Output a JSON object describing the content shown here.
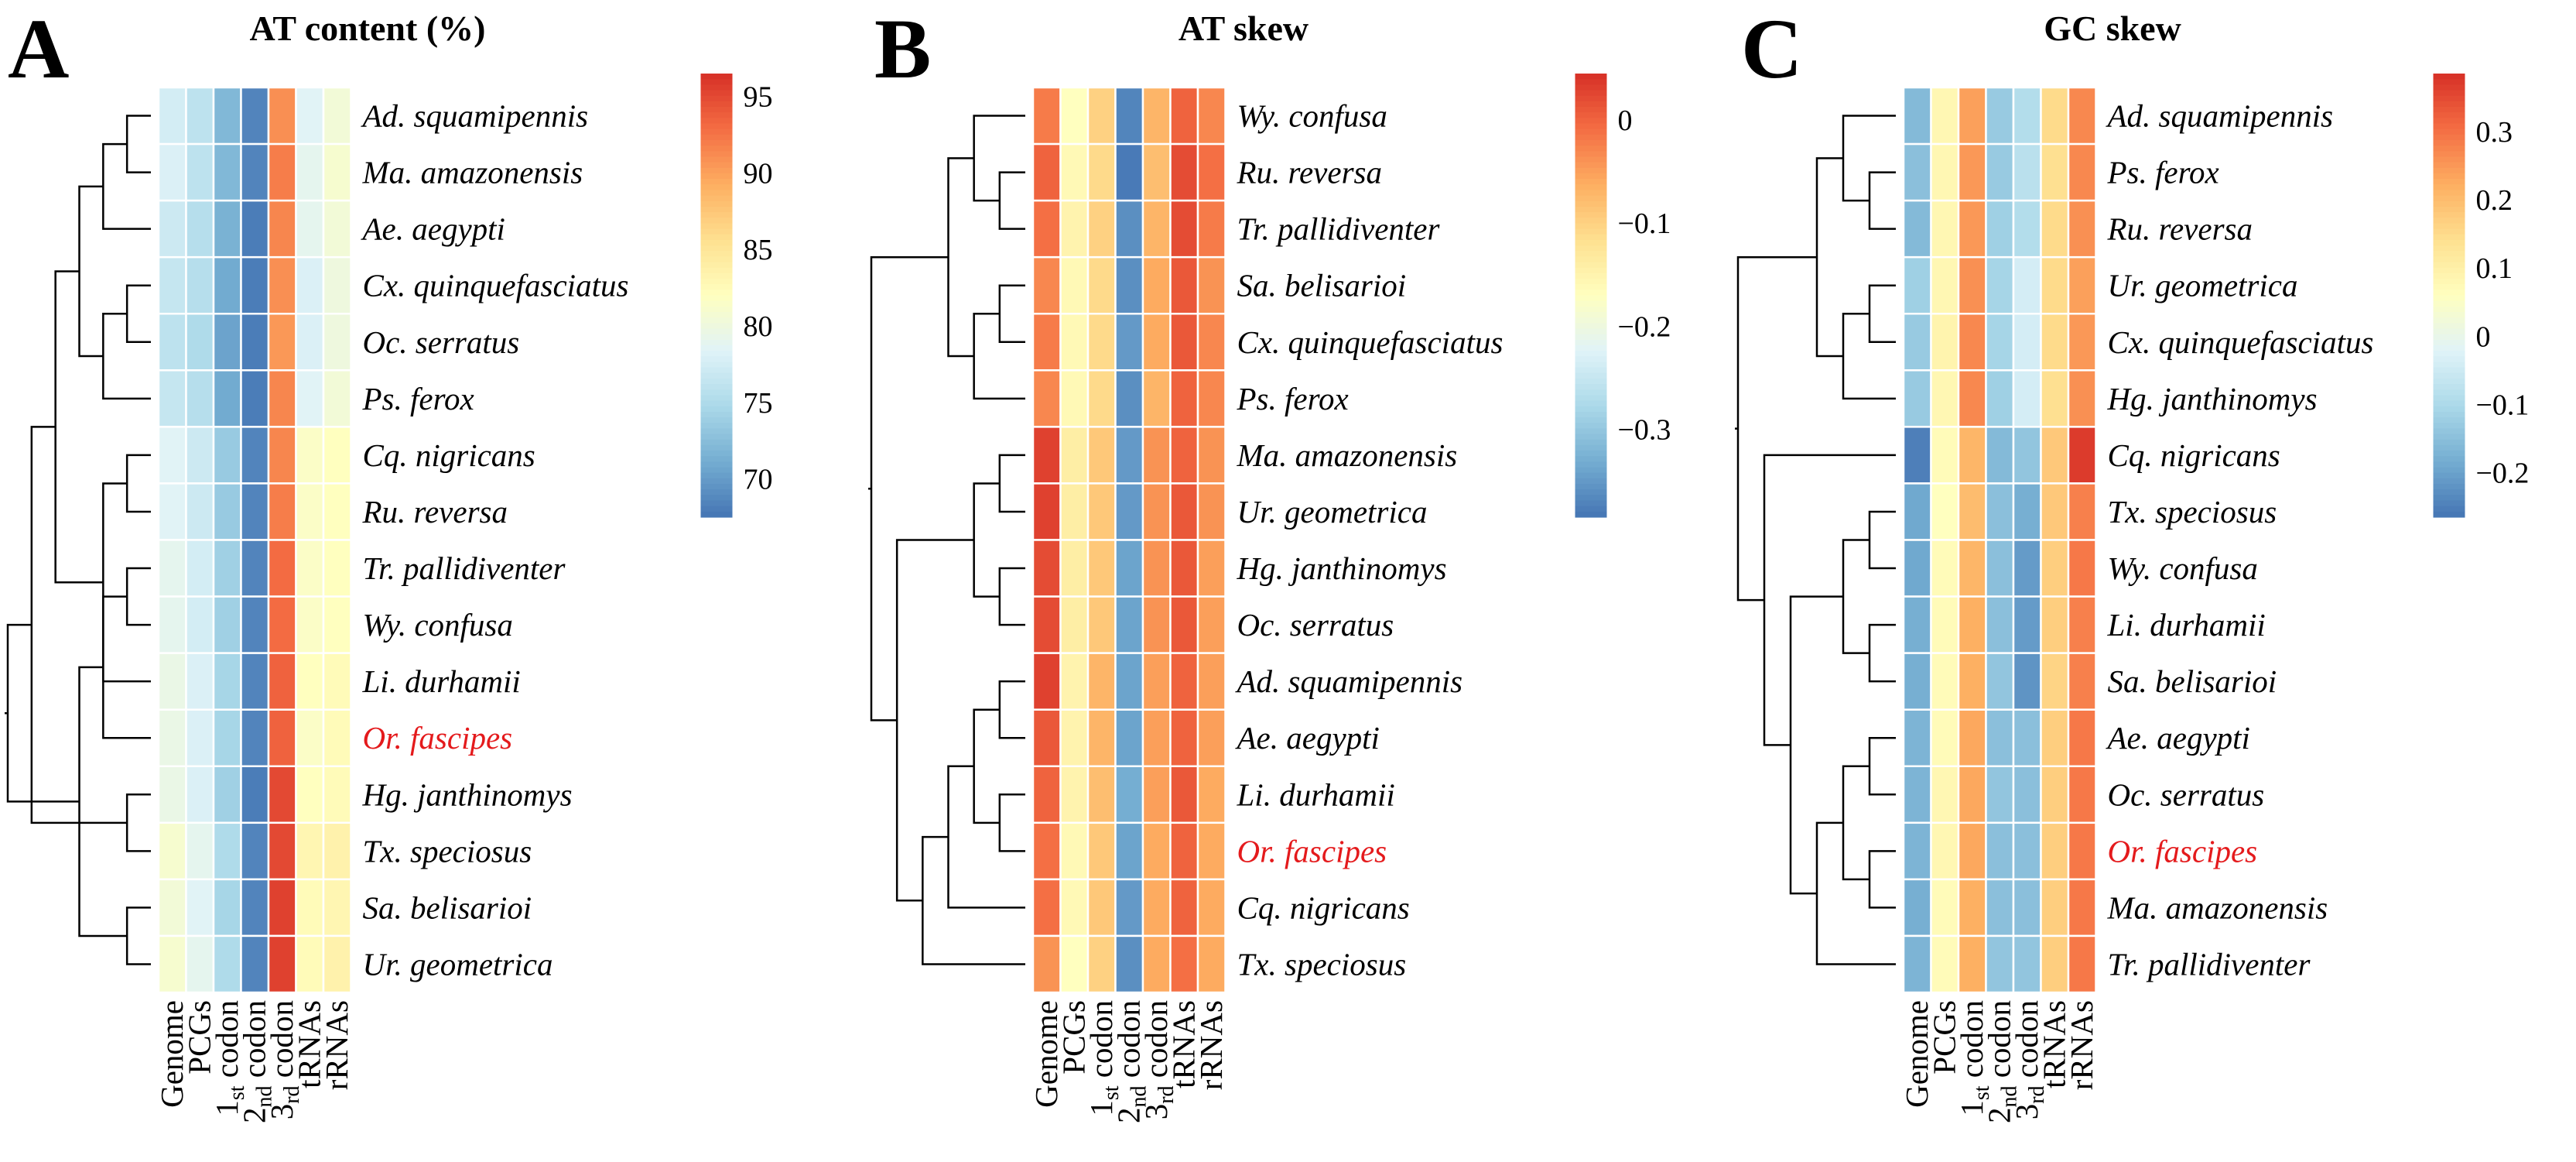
{
  "colors": {
    "low": "#4575b4",
    "mid": "#ffffbf",
    "high": "#d73027",
    "highlight": "#e41a1c",
    "text": "#000000",
    "grid": "#ffffff"
  },
  "highlight_species": "Or. fascipes",
  "columns": [
    {
      "main": "Genome",
      "sub": ""
    },
    {
      "main": "PCGs",
      "sub": ""
    },
    {
      "main": "1",
      "sub": "st",
      "tail": " codon"
    },
    {
      "main": "2",
      "sub": "nd",
      "tail": " codon"
    },
    {
      "main": "3",
      "sub": "rd",
      "tail": " codon"
    },
    {
      "main": "tRNAs",
      "sub": ""
    },
    {
      "main": "rRNAs",
      "sub": ""
    }
  ],
  "chart_data": [
    {
      "type": "heatmap",
      "letter": "A",
      "title": "AT content (%)",
      "legend": {
        "min": 67.5,
        "max": 96.5,
        "ticks": [
          70,
          75,
          80,
          85,
          90,
          95
        ],
        "tick_labels": [
          "70",
          "75",
          "80",
          "85",
          "90",
          "95"
        ]
      },
      "rows": [
        "Ad. squamipennis",
        "Ma. amazonensis",
        "Ae. aegypti",
        "Cx. quinquefasciatus",
        "Oc. serratus",
        "Ps. ferox",
        "Cq. nigricans",
        "Ru. reversa",
        "Tr. pallidiventer",
        "Wy. confusa",
        "Li. durhamii",
        "Or. fascipes",
        "Hg. janthinomys",
        "Tx. speciosus",
        "Sa. belisarioi",
        "Ur. geometrica"
      ],
      "values": [
        [
          77.5,
          76.0,
          72.0,
          68.5,
          91.0,
          78.5,
          80.5
        ],
        [
          78.0,
          76.0,
          72.0,
          68.5,
          92.0,
          79.0,
          81.0
        ],
        [
          77.0,
          75.5,
          71.5,
          68.0,
          91.5,
          79.0,
          80.5
        ],
        [
          76.5,
          75.5,
          71.0,
          68.0,
          91.0,
          78.0,
          80.0
        ],
        [
          76.0,
          75.0,
          70.5,
          68.0,
          90.5,
          78.0,
          80.0
        ],
        [
          76.5,
          75.5,
          71.0,
          68.0,
          91.5,
          78.5,
          80.5
        ],
        [
          78.5,
          77.0,
          73.5,
          68.5,
          91.5,
          81.5,
          82.0
        ],
        [
          78.5,
          77.0,
          73.5,
          68.5,
          92.0,
          81.5,
          82.0
        ],
        [
          79.0,
          77.5,
          74.0,
          68.5,
          93.0,
          81.5,
          82.0
        ],
        [
          79.0,
          77.5,
          74.0,
          68.5,
          93.0,
          81.5,
          82.0
        ],
        [
          79.5,
          78.0,
          74.5,
          68.5,
          93.5,
          82.0,
          82.5
        ],
        [
          79.5,
          78.0,
          74.5,
          68.5,
          93.5,
          81.5,
          82.5
        ],
        [
          79.5,
          78.0,
          74.0,
          68.0,
          95.0,
          82.0,
          82.5
        ],
        [
          81.0,
          79.0,
          75.0,
          68.5,
          95.0,
          83.0,
          83.5
        ],
        [
          80.5,
          78.5,
          74.5,
          68.5,
          95.5,
          82.5,
          83.0
        ],
        [
          81.0,
          79.0,
          75.0,
          68.5,
          95.5,
          82.5,
          83.5
        ]
      ],
      "dendrogram": [
        [
          0,
          1
        ],
        [
          16,
          2
        ],
        [
          3,
          4
        ],
        [
          18,
          5
        ],
        [
          17,
          19
        ],
        [
          6,
          7
        ],
        [
          8,
          9
        ],
        [
          21,
          10
        ],
        [
          22,
          11
        ],
        [
          20,
          23
        ],
        [
          12,
          13
        ],
        [
          14,
          15
        ],
        [
          25,
          26
        ],
        [
          24,
          27
        ],
        [
          28,
          29
        ]
      ]
    },
    {
      "type": "heatmap",
      "letter": "B",
      "title": "AT skew",
      "legend": {
        "min": -0.385,
        "max": 0.045,
        "ticks": [
          0,
          -0.1,
          -0.2,
          -0.3
        ],
        "tick_labels": [
          "0",
          "−0.1",
          "−0.2",
          "−0.3"
        ]
      },
      "rows": [
        "Wy. confusa",
        "Ru. reversa",
        "Tr. pallidiventer",
        "Sa. belisarioi",
        "Cx. quinquefasciatus",
        "Ps. ferox",
        "Ma. amazonensis",
        "Ur. geometrica",
        "Hg. janthinomys",
        "Oc. serratus",
        "Ad. squamipennis",
        "Ae. aegypti",
        "Li. durhamii",
        "Or. fascipes",
        "Cq. nigricans",
        "Tx. speciosus"
      ],
      "values": [
        [
          -0.02,
          -0.17,
          -0.1,
          -0.37,
          -0.07,
          0.0,
          -0.03
        ],
        [
          0.0,
          -0.16,
          -0.11,
          -0.38,
          -0.08,
          0.02,
          -0.01
        ],
        [
          -0.01,
          -0.15,
          -0.1,
          -0.36,
          -0.07,
          0.02,
          -0.02
        ],
        [
          -0.03,
          -0.16,
          -0.11,
          -0.36,
          -0.06,
          0.01,
          -0.04
        ],
        [
          -0.02,
          -0.16,
          -0.11,
          -0.35,
          -0.06,
          0.01,
          -0.03
        ],
        [
          -0.03,
          -0.16,
          -0.11,
          -0.36,
          -0.07,
          0.0,
          -0.03
        ],
        [
          0.03,
          -0.14,
          -0.09,
          -0.35,
          -0.04,
          0.0,
          -0.04
        ],
        [
          0.03,
          -0.14,
          -0.09,
          -0.35,
          -0.04,
          0.01,
          -0.04
        ],
        [
          0.02,
          -0.14,
          -0.09,
          -0.34,
          -0.04,
          0.01,
          -0.05
        ],
        [
          0.02,
          -0.14,
          -0.09,
          -0.34,
          -0.04,
          0.01,
          -0.05
        ],
        [
          0.03,
          -0.15,
          -0.07,
          -0.34,
          -0.05,
          0.0,
          -0.05
        ],
        [
          0.01,
          -0.15,
          -0.07,
          -0.34,
          -0.05,
          0.0,
          -0.05
        ],
        [
          0.0,
          -0.15,
          -0.08,
          -0.33,
          -0.05,
          0.01,
          -0.06
        ],
        [
          -0.01,
          -0.16,
          -0.09,
          -0.34,
          -0.06,
          0.0,
          -0.06
        ],
        [
          -0.01,
          -0.16,
          -0.09,
          -0.35,
          -0.06,
          0.0,
          -0.06
        ],
        [
          -0.04,
          -0.17,
          -0.1,
          -0.36,
          -0.06,
          -0.01,
          -0.06
        ]
      ],
      "dendrogram": [
        [
          1,
          2
        ],
        [
          0,
          16
        ],
        [
          3,
          4
        ],
        [
          18,
          5
        ],
        [
          17,
          19
        ],
        [
          6,
          7
        ],
        [
          8,
          9
        ],
        [
          21,
          22
        ],
        [
          10,
          11
        ],
        [
          12,
          13
        ],
        [
          24,
          25
        ],
        [
          26,
          14
        ],
        [
          27,
          15
        ],
        [
          23,
          28
        ],
        [
          20,
          29
        ]
      ]
    },
    {
      "type": "heatmap",
      "letter": "C",
      "title": "GC skew",
      "legend": {
        "min": -0.265,
        "max": 0.385,
        "ticks": [
          0.3,
          0.2,
          0.1,
          0,
          -0.1,
          -0.2
        ],
        "tick_labels": [
          "0.3",
          "0.2",
          "0.1",
          "0",
          "−0.1",
          "−0.2"
        ]
      },
      "rows": [
        "Ad. squamipennis",
        "Ps. ferox",
        "Ru. reversa",
        "Ur. geometrica",
        "Cx. quinquefasciatus",
        "Hg. janthinomys",
        "Cq. nigricans",
        "Tx. speciosus",
        "Wy. confusa",
        "Li. durhamii",
        "Sa. belisarioi",
        "Ae. aegypti",
        "Oc. serratus",
        "Or. fascipes",
        "Ma. amazonensis",
        "Tr. pallidiventer"
      ],
      "values": [
        [
          -0.16,
          0.08,
          0.24,
          -0.13,
          -0.09,
          0.15,
          0.27
        ],
        [
          -0.15,
          0.08,
          0.25,
          -0.13,
          -0.08,
          0.14,
          0.27
        ],
        [
          -0.16,
          0.08,
          0.25,
          -0.12,
          -0.09,
          0.15,
          0.26
        ],
        [
          -0.12,
          0.08,
          0.26,
          -0.11,
          -0.04,
          0.15,
          0.24
        ],
        [
          -0.13,
          0.09,
          0.27,
          -0.11,
          -0.04,
          0.15,
          0.25
        ],
        [
          -0.13,
          0.08,
          0.27,
          -0.12,
          -0.04,
          0.14,
          0.26
        ],
        [
          -0.25,
          0.07,
          0.21,
          -0.16,
          -0.14,
          0.18,
          0.37
        ],
        [
          -0.19,
          0.06,
          0.2,
          -0.15,
          -0.18,
          0.18,
          0.28
        ],
        [
          -0.19,
          0.07,
          0.21,
          -0.15,
          -0.21,
          0.17,
          0.29
        ],
        [
          -0.18,
          0.07,
          0.22,
          -0.15,
          -0.21,
          0.17,
          0.28
        ],
        [
          -0.18,
          0.07,
          0.22,
          -0.14,
          -0.22,
          0.16,
          0.28
        ],
        [
          -0.17,
          0.07,
          0.23,
          -0.15,
          -0.15,
          0.17,
          0.29
        ],
        [
          -0.17,
          0.08,
          0.23,
          -0.14,
          -0.15,
          0.17,
          0.29
        ],
        [
          -0.17,
          0.08,
          0.23,
          -0.15,
          -0.15,
          0.17,
          0.29
        ],
        [
          -0.18,
          0.07,
          0.22,
          -0.15,
          -0.15,
          0.17,
          0.29
        ],
        [
          -0.17,
          0.07,
          0.22,
          -0.14,
          -0.14,
          0.17,
          0.29
        ]
      ],
      "dendrogram": [
        [
          1,
          2
        ],
        [
          0,
          16
        ],
        [
          3,
          4
        ],
        [
          18,
          5
        ],
        [
          17,
          19
        ],
        [
          7,
          8
        ],
        [
          9,
          10
        ],
        [
          21,
          22
        ],
        [
          11,
          12
        ],
        [
          13,
          14
        ],
        [
          24,
          25
        ],
        [
          26,
          15
        ],
        [
          23,
          27
        ],
        [
          6,
          28
        ],
        [
          20,
          29
        ]
      ]
    }
  ]
}
